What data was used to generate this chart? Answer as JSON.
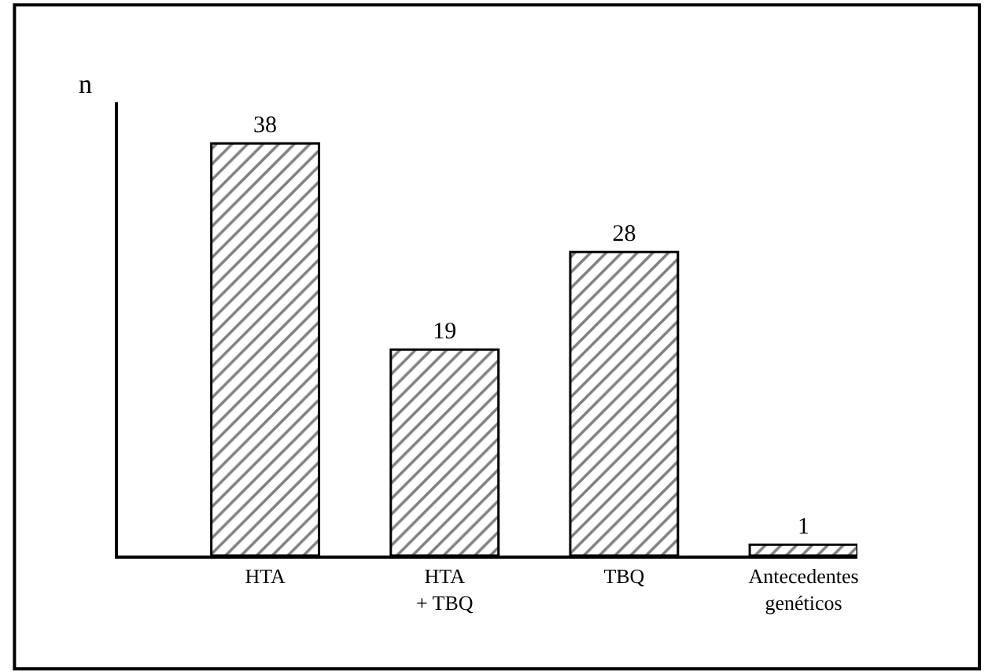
{
  "chart_data": {
    "type": "bar",
    "ylabel": "n",
    "categories": [
      "HTA",
      "HTA\n+ TBQ",
      "TBQ",
      "Antecedentes\ngenéticos"
    ],
    "values": [
      38,
      19,
      28,
      1
    ],
    "color": "#000000",
    "data_labels": true
  }
}
